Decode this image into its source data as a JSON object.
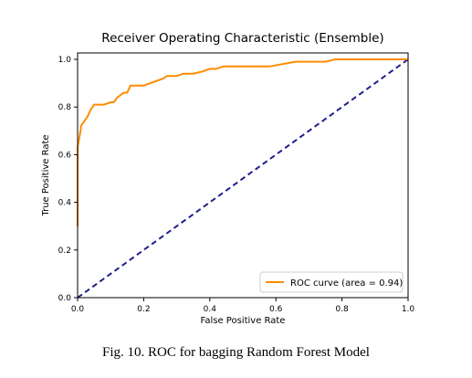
{
  "figure": {
    "caption": "Fig. 10. ROC for bagging Random Forest Model"
  },
  "chart_data": {
    "type": "line",
    "title": "Receiver Operating Characteristic (Ensemble)",
    "xlabel": "False Positive Rate",
    "ylabel": "True Positive Rate",
    "xlim": [
      0.0,
      1.0
    ],
    "ylim": [
      0.0,
      1.0
    ],
    "xticks": [
      "0.0",
      "0.2",
      "0.4",
      "0.6",
      "0.8",
      "1.0"
    ],
    "yticks": [
      "0.0",
      "0.2",
      "0.4",
      "0.6",
      "0.8",
      "1.0"
    ],
    "grid": false,
    "legend_placement": "lower right",
    "series": [
      {
        "name": "ROC curve (area = 0.94)",
        "color": "#ff8c00",
        "style": "solid",
        "x": [
          0.0,
          0.0,
          0.01,
          0.01,
          0.02,
          0.03,
          0.04,
          0.05,
          0.06,
          0.08,
          0.1,
          0.11,
          0.12,
          0.14,
          0.15,
          0.16,
          0.18,
          0.2,
          0.22,
          0.24,
          0.26,
          0.27,
          0.28,
          0.3,
          0.32,
          0.35,
          0.38,
          0.4,
          0.42,
          0.44,
          0.46,
          0.5,
          0.56,
          0.58,
          0.62,
          0.66,
          0.7,
          0.75,
          0.78,
          0.8,
          0.85,
          0.9,
          0.95,
          1.0
        ],
        "y": [
          0.3,
          0.63,
          0.71,
          0.72,
          0.74,
          0.76,
          0.79,
          0.81,
          0.81,
          0.81,
          0.82,
          0.82,
          0.84,
          0.86,
          0.86,
          0.89,
          0.89,
          0.89,
          0.9,
          0.91,
          0.92,
          0.93,
          0.93,
          0.93,
          0.94,
          0.94,
          0.95,
          0.96,
          0.96,
          0.97,
          0.97,
          0.97,
          0.97,
          0.97,
          0.98,
          0.99,
          0.99,
          0.99,
          1.0,
          1.0,
          1.0,
          1.0,
          1.0,
          1.0
        ]
      },
      {
        "name": "",
        "color": "#1f1f8c",
        "style": "dashed",
        "x": [
          0.0,
          1.0
        ],
        "y": [
          0.0,
          1.0
        ]
      }
    ]
  }
}
